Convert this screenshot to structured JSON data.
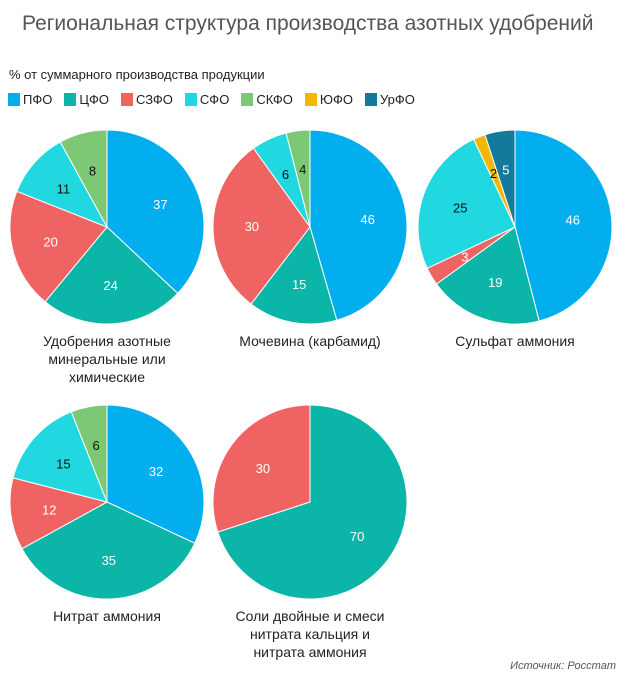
{
  "chart_data": [
    {
      "type": "pie",
      "title": "Удобрения азотные\nминеральные или\nхимические",
      "values": [
        37,
        24,
        20,
        11,
        8,
        0,
        0
      ]
    },
    {
      "type": "pie",
      "title": "Мочевина (карбамид)",
      "values": [
        46,
        15,
        30,
        6,
        4,
        0,
        0
      ]
    },
    {
      "type": "pie",
      "title": "Сульфат аммония",
      "values": [
        46,
        19,
        3,
        25,
        0,
        2,
        5
      ]
    },
    {
      "type": "pie",
      "title": "Нитрат аммония",
      "values": [
        32,
        35,
        12,
        15,
        6,
        0,
        0
      ]
    },
    {
      "type": "pie",
      "title": "Соли двойные и смеси\nнитрата кальция и\nнитрата аммония",
      "values": [
        0,
        70,
        30,
        0,
        0,
        0,
        0
      ]
    }
  ],
  "title": "Региональная структура производства азотных удобрений",
  "subtitle": "% от суммарного производства продукции",
  "legend": [
    {
      "name": "ПФО",
      "color": "#03AEEF",
      "label_color": "#ffffff"
    },
    {
      "name": "ЦФО",
      "color": "#0BB5A8",
      "label_color": "#ffffff"
    },
    {
      "name": "СЗФО",
      "color": "#F06363",
      "label_color": "#ffffff"
    },
    {
      "name": "СФО",
      "color": "#22D8E0",
      "label_color": "#111111"
    },
    {
      "name": "СКФО",
      "color": "#7DC874",
      "label_color": "#111111"
    },
    {
      "name": "ЮФО",
      "color": "#F2B708",
      "label_color": "#111111"
    },
    {
      "name": "УрФО",
      "color": "#137A9C",
      "label_color": "#ffffff"
    }
  ],
  "source": "Источник: Росстат"
}
